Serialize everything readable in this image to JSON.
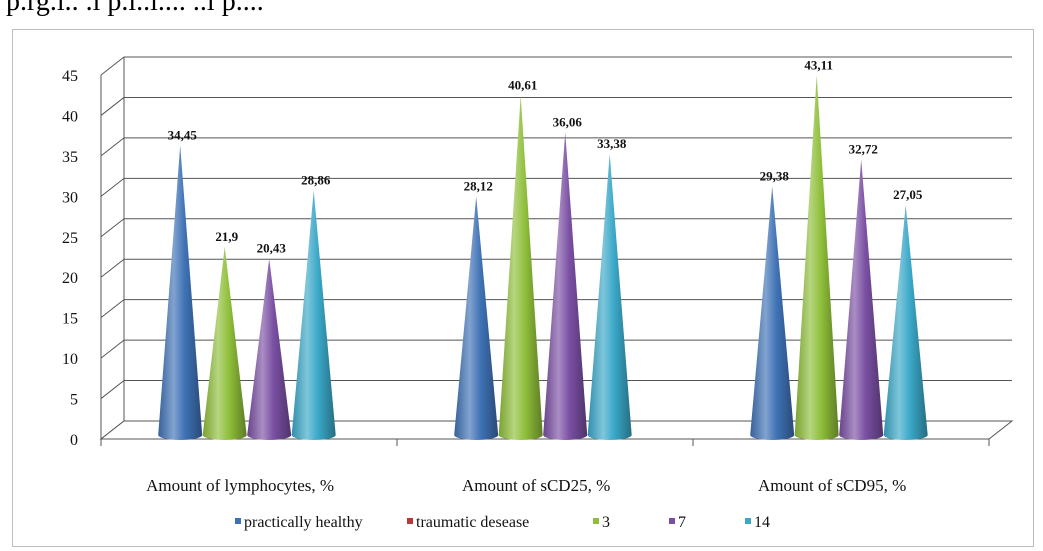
{
  "top_fragment": "p.rg.l.. .l p.l..l.... ..l p....",
  "chart_data": {
    "type": "bar",
    "style": "3d-cone",
    "categories": [
      "Amount of lymphocytes, %",
      "Amount of sCD25, %",
      "Amount of sCD95, %"
    ],
    "series": [
      {
        "name": "practically healthy",
        "color": "#3f72b5",
        "values": [
          34.45,
          28.12,
          29.38
        ],
        "labels": [
          "34,45",
          "28,12",
          "29,38"
        ]
      },
      {
        "name": "traumatic desease",
        "color": "#b8383b",
        "values": [
          null,
          null,
          null
        ],
        "labels": [
          "",
          "",
          ""
        ]
      },
      {
        "name": "3",
        "color": "#8fbf3a",
        "values": [
          21.9,
          40.61,
          43.11
        ],
        "labels": [
          "21,9",
          "40,61",
          "43,11"
        ]
      },
      {
        "name": "7",
        "color": "#7a4fa3",
        "values": [
          20.43,
          36.06,
          32.72
        ],
        "labels": [
          "20,43",
          "36,06",
          "32,72"
        ]
      },
      {
        "name": "14",
        "color": "#3aa8c8",
        "values": [
          28.86,
          33.38,
          27.05
        ],
        "labels": [
          "28,86",
          "33,38",
          "27,05"
        ]
      }
    ],
    "yticks": [
      "0",
      "5",
      "10",
      "15",
      "20",
      "25",
      "30",
      "35",
      "40",
      "45"
    ],
    "ylim": [
      0,
      45
    ],
    "grid": true,
    "legend_position": "bottom"
  }
}
